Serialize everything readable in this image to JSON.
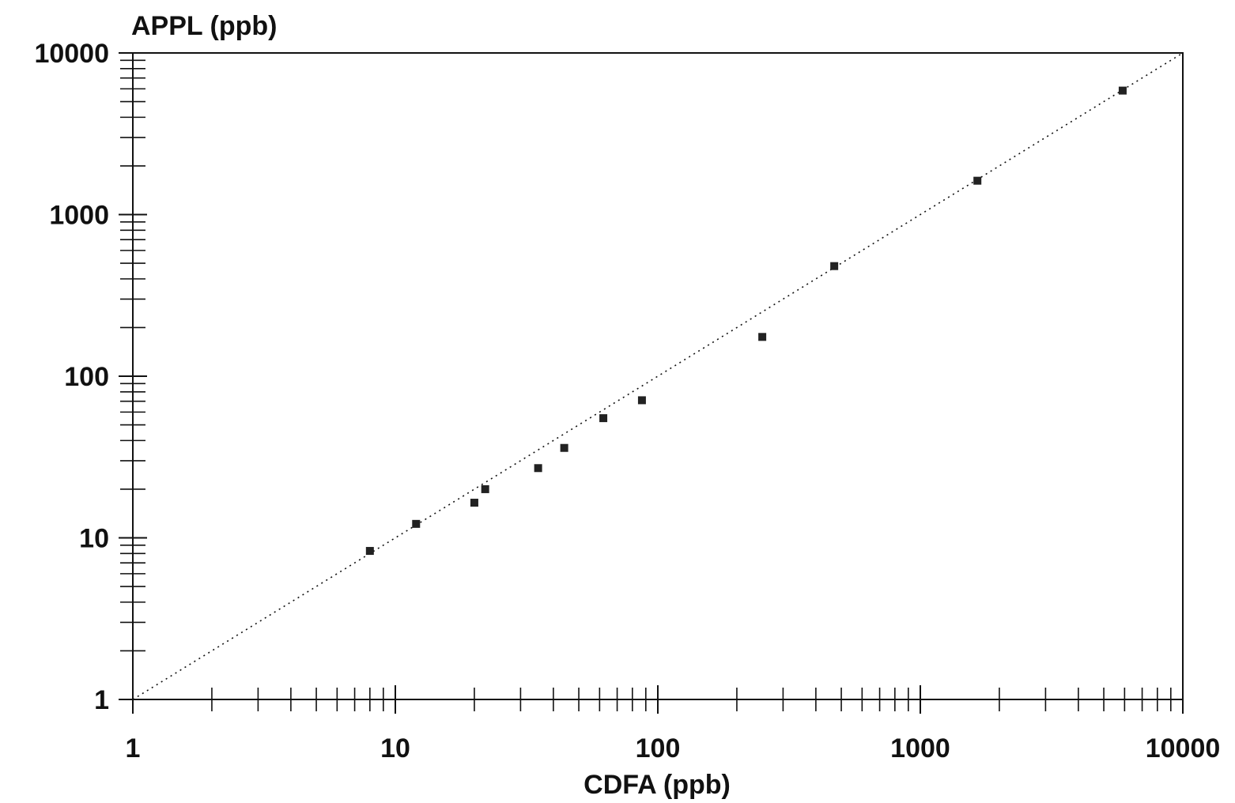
{
  "chart_data": {
    "type": "scatter",
    "title": "",
    "xlabel": "CDFA (ppb)",
    "ylabel": "APPL (ppb)",
    "xscale": "log",
    "yscale": "log",
    "xlim": [
      1,
      10000
    ],
    "ylim": [
      1,
      10000
    ],
    "grid": false,
    "legend": "none",
    "x_tick_labels": [
      "1",
      "10",
      "100",
      "1000",
      "10000"
    ],
    "y_tick_labels": [
      "1",
      "10",
      "100",
      "1000",
      "10000"
    ],
    "reference_line": {
      "style": "dotted",
      "from": [
        1,
        1
      ],
      "to": [
        10000,
        10000
      ]
    },
    "series": [
      {
        "x": [
          8,
          12,
          20,
          22,
          35,
          44,
          62,
          87,
          250,
          470,
          1650,
          5900
        ],
        "y": [
          8.3,
          12.2,
          16.5,
          20,
          27,
          36,
          55,
          71,
          175,
          480,
          1620,
          5850
        ]
      }
    ],
    "colors": {
      "axis": "#111111",
      "marker": "#222222",
      "background": "#ffffff"
    }
  }
}
